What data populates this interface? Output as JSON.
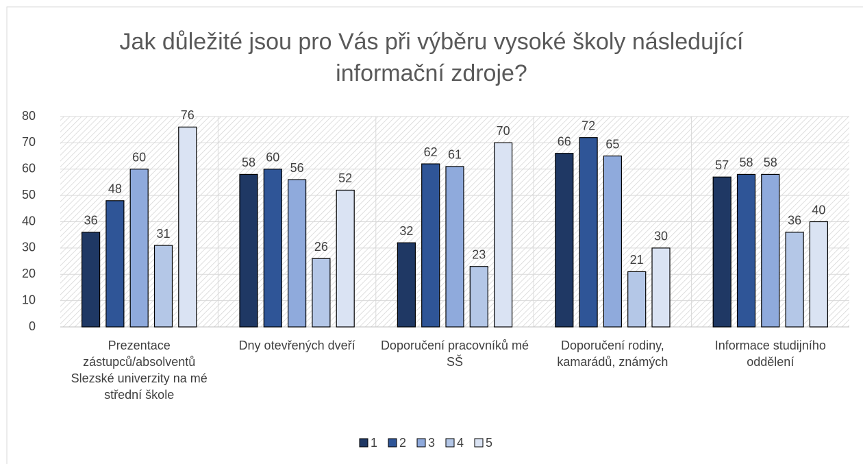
{
  "chart_data": {
    "type": "bar",
    "title": "Jak důležité jsou pro Vás při výběru vysoké školy následující informační zdroje?",
    "categories": [
      "Prezentace zástupců/absolventů Slezské univerzity na mé střední škole",
      "Dny otevřených dveří",
      "Doporučení pracovníků mé SŠ",
      "Doporučení rodiny, kamarádů, známých",
      "Informace studijního oddělení"
    ],
    "series": [
      {
        "name": "1",
        "color": "#1f3864",
        "values": [
          36,
          58,
          32,
          66,
          57
        ]
      },
      {
        "name": "2",
        "color": "#2f5597",
        "values": [
          48,
          60,
          62,
          72,
          58
        ]
      },
      {
        "name": "3",
        "color": "#8faadc",
        "values": [
          60,
          56,
          61,
          65,
          58
        ]
      },
      {
        "name": "4",
        "color": "#b4c7e7",
        "values": [
          31,
          26,
          23,
          21,
          36
        ]
      },
      {
        "name": "5",
        "color": "#dae3f3",
        "values": [
          76,
          52,
          70,
          30,
          40
        ]
      }
    ],
    "ylim": [
      0,
      80
    ],
    "yticks": [
      0,
      10,
      20,
      30,
      40,
      50,
      60,
      70,
      80
    ],
    "grid": true,
    "legend": "bottom"
  }
}
